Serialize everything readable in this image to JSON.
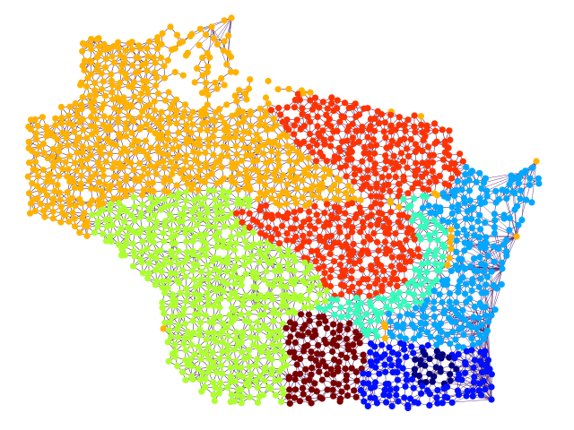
{
  "graph": {
    "type": "geographic-partition-graph",
    "edge_color": "#3b0a5e",
    "node_count_estimate": 2200,
    "partitions": [
      {
        "id": "north-west",
        "color": "#ffb300"
      },
      {
        "id": "north-east",
        "color": "#ff3300"
      },
      {
        "id": "central",
        "color": "#ff3300"
      },
      {
        "id": "south-west",
        "color": "#adff2f"
      },
      {
        "id": "east-coast",
        "color": "#00a8ff"
      },
      {
        "id": "east-inner",
        "color": "#33ffbb"
      },
      {
        "id": "south-central",
        "color": "#7a0000"
      },
      {
        "id": "south-east",
        "color": "#0010ff"
      },
      {
        "id": "south-east-core",
        "color": "#000080"
      }
    ]
  }
}
